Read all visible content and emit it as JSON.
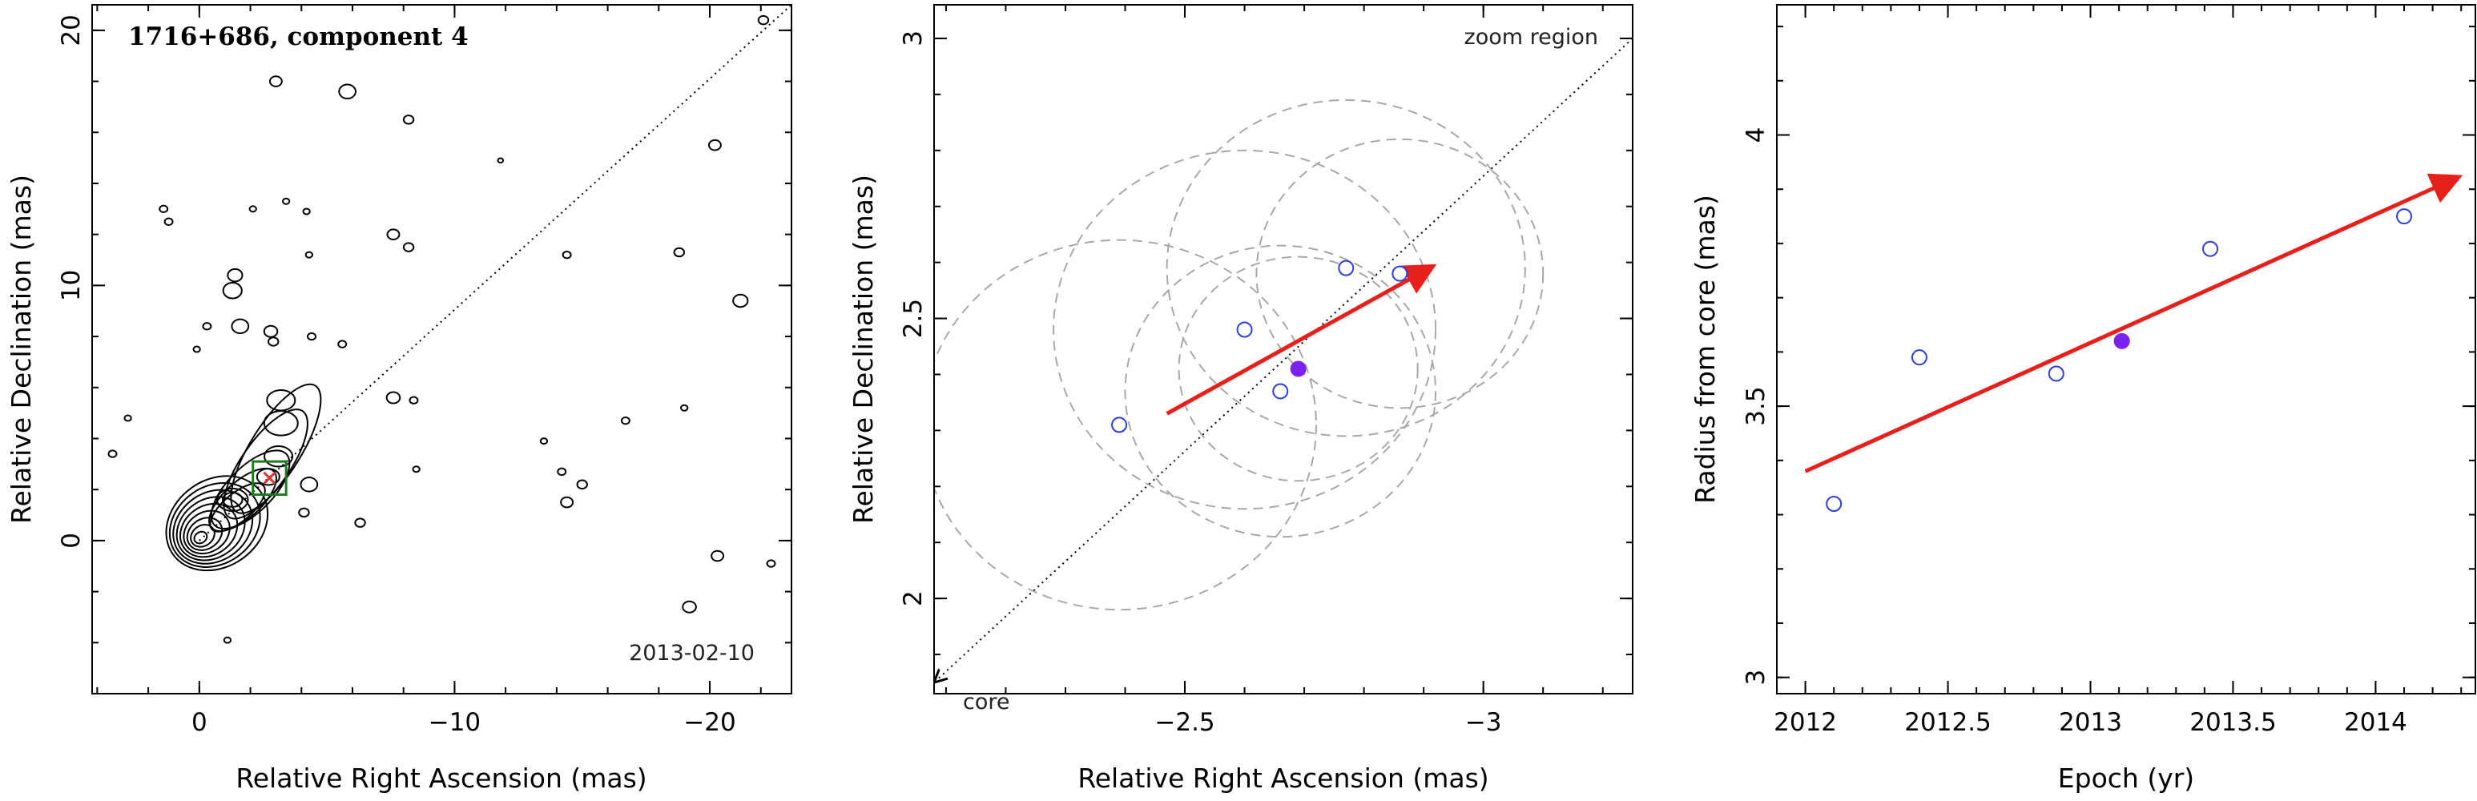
{
  "chart_data": [
    {
      "type": "contour",
      "title": "1716+686, component 4",
      "annotation_date": "2013-02-10",
      "xlabel": "Relative Right Ascension (mas)",
      "ylabel": "Relative Declination (mas)",
      "xlim": [
        4.2,
        -23.2
      ],
      "ylim": [
        -6.0,
        21.0
      ],
      "xticks": [
        0,
        -10,
        -20
      ],
      "yticks": [
        0,
        10,
        20
      ],
      "grid": false,
      "component_marker": {
        "x": -2.75,
        "y": 2.45,
        "color": "#1f7a1f",
        "box_half_size_mas": 0.65
      },
      "direction_line": {
        "from": [
          0,
          0
        ],
        "to": [
          -23.2,
          21.0
        ],
        "style": "dotted"
      },
      "contour_color": "#000000",
      "marker_color": "#e8342c"
    },
    {
      "type": "scatter",
      "title": "",
      "annotations": [
        "zoom region",
        "core"
      ],
      "xlabel": "Relative Right Ascension (mas)",
      "ylabel": "Relative Declination (mas)",
      "xlim": [
        -2.08,
        -3.25
      ],
      "ylim": [
        1.83,
        3.06
      ],
      "xticks": [
        -2.5,
        -3
      ],
      "yticks": [
        2,
        2.5,
        3
      ],
      "grid": false,
      "series": [
        {
          "marker": "open-circle",
          "color": "#2b3fe0",
          "points": [
            [
              -2.39,
              2.31
            ],
            [
              -2.6,
              2.48
            ],
            [
              -2.66,
              2.37
            ],
            [
              -2.77,
              2.59
            ],
            [
              -2.86,
              2.58
            ]
          ]
        },
        {
          "marker": "filled-circle",
          "color": "#7b22f0",
          "points": [
            [
              -2.69,
              2.41
            ]
          ]
        }
      ],
      "error_circles": [
        {
          "x": -2.39,
          "y": 2.31,
          "r": 0.33
        },
        {
          "x": -2.6,
          "y": 2.48,
          "r": 0.32
        },
        {
          "x": -2.66,
          "y": 2.37,
          "r": 0.26
        },
        {
          "x": -2.77,
          "y": 2.59,
          "r": 0.3
        },
        {
          "x": -2.86,
          "y": 2.58,
          "r": 0.24
        },
        {
          "x": -2.69,
          "y": 2.41,
          "r": 0.2
        }
      ],
      "motion_arrow": {
        "from": [
          -2.47,
          2.33
        ],
        "to": [
          -2.91,
          2.59
        ],
        "color": "#e8201c"
      },
      "core_direction_line": {
        "from": [
          -3.25,
          3.0
        ],
        "to": [
          -2.08,
          1.85
        ],
        "style": "dotted"
      }
    },
    {
      "type": "scatter",
      "title": "",
      "xlabel": "Epoch (yr)",
      "ylabel": "Radius from core (mas)",
      "xlim": [
        2011.9,
        2014.35
      ],
      "ylim": [
        2.97,
        4.24
      ],
      "xticks": [
        2012,
        2012.5,
        2013,
        2013.5,
        2014
      ],
      "yticks": [
        3,
        3.5,
        4
      ],
      "grid": false,
      "series": [
        {
          "marker": "open-circle",
          "color": "#2b3fe0",
          "x": [
            2012.1,
            2012.4,
            2012.88,
            2013.42,
            2014.1
          ],
          "y": [
            3.32,
            3.59,
            3.56,
            3.79,
            3.85
          ]
        },
        {
          "marker": "filled-circle",
          "color": "#7b22f0",
          "x": [
            2013.11
          ],
          "y": [
            3.62
          ]
        }
      ],
      "fit_arrow": {
        "from": [
          2012.0,
          3.38
        ],
        "to": [
          2014.28,
          3.92
        ],
        "color": "#e8201c"
      }
    }
  ]
}
